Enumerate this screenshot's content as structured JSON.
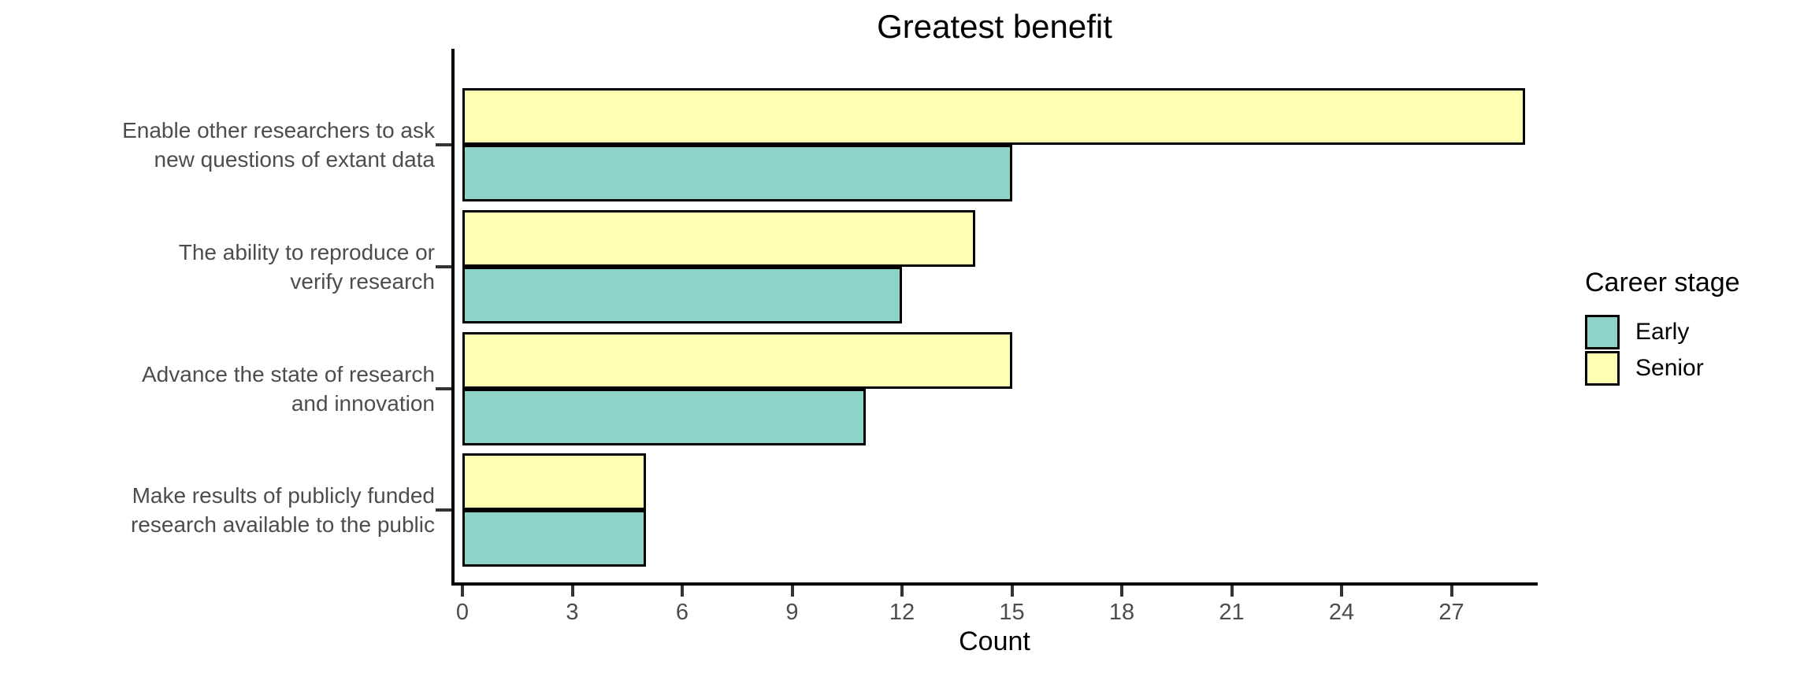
{
  "chart_data": {
    "type": "bar",
    "orientation": "horizontal",
    "title": "Greatest benefit",
    "xlabel": "Count",
    "categories": [
      {
        "label_lines": [
          "Enable other researchers to ask",
          "new questions of extant data"
        ]
      },
      {
        "label_lines": [
          "The ability to reproduce or",
          "verify research"
        ]
      },
      {
        "label_lines": [
          "Advance the state of research",
          "and innovation"
        ]
      },
      {
        "label_lines": [
          "Make results of publicly funded",
          "research available to the public"
        ]
      }
    ],
    "series": [
      {
        "name": "Early",
        "color": "#8DD3C7",
        "values": [
          15,
          12,
          11,
          5
        ]
      },
      {
        "name": "Senior",
        "color": "#FFFFB3",
        "values": [
          29,
          14,
          15,
          5
        ]
      }
    ],
    "x_ticks": [
      0,
      3,
      6,
      9,
      12,
      15,
      18,
      21,
      24,
      27
    ],
    "xlim": [
      0,
      29.6
    ],
    "grid": false,
    "legend": {
      "title": "Career stage",
      "position": "right",
      "entries": [
        "Early",
        "Senior"
      ]
    },
    "bar_outline_color": "#000000",
    "axis_text_color": "#4D4D4D"
  }
}
